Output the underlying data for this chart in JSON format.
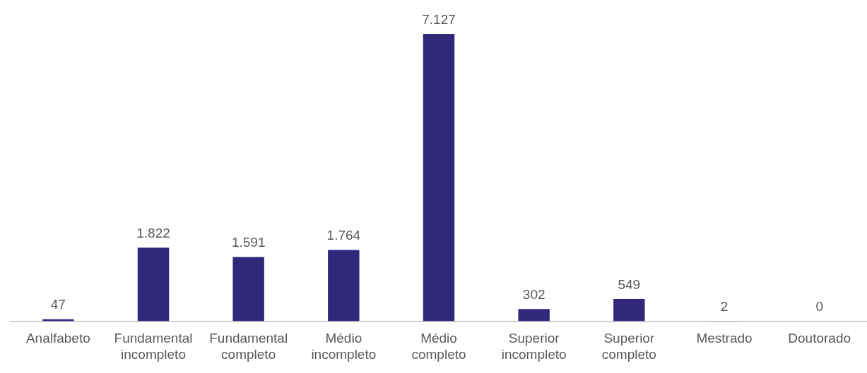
{
  "chart_data": {
    "type": "bar",
    "categories": [
      "Analfabeto",
      "Fundamental incompleto",
      "Fundamental completo",
      "Médio incompleto",
      "Médio completo",
      "Superior incompleto",
      "Superior completo",
      "Mestrado",
      "Doutorado"
    ],
    "values": [
      47,
      1822,
      1591,
      1764,
      7127,
      302,
      549,
      2,
      0
    ],
    "value_labels": [
      "47",
      "1.822",
      "1.591",
      "1.764",
      "7.127",
      "302",
      "549",
      "2",
      "0"
    ],
    "color": "#31287c",
    "grid": false,
    "legend": false
  }
}
